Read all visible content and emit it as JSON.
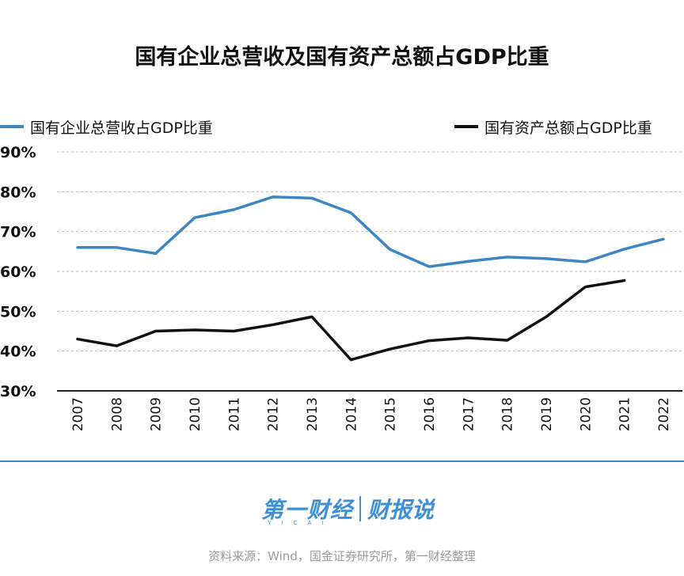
{
  "chart_data": {
    "type": "line",
    "title": "国有企业总营收及国有资产总额占GDP比重",
    "categories": [
      "2007",
      "2008",
      "2009",
      "2010",
      "2011",
      "2012",
      "2013",
      "2014",
      "2015",
      "2016",
      "2017",
      "2018",
      "2019",
      "2020",
      "2021",
      "2022"
    ],
    "ylim": [
      30,
      90
    ],
    "yticks": [
      "90%",
      "80%",
      "70%",
      "60%",
      "50%",
      "40%",
      "30%"
    ],
    "grid": true,
    "legend_position": "top",
    "series": [
      {
        "name": "国有企业总营收占GDP比重",
        "color": "#3d86c6",
        "values": [
          66.0,
          66.0,
          64.5,
          73.5,
          75.5,
          78.7,
          78.4,
          74.7,
          65.5,
          61.2,
          62.5,
          63.6,
          63.2,
          62.4,
          65.6,
          68.1
        ]
      },
      {
        "name": "国有资产总额占GDP比重",
        "color": "#111111",
        "values": [
          43.0,
          41.3,
          45.0,
          45.3,
          45.0,
          46.6,
          48.6,
          37.8,
          40.5,
          42.6,
          43.3,
          42.7,
          48.6,
          56.1,
          57.7,
          null
        ]
      }
    ]
  },
  "logo": {
    "main": "第一财经",
    "sub": "财报说",
    "tag": "YICAI"
  },
  "source": "资料来源：Wind，国金证券研究所，第一财经整理"
}
